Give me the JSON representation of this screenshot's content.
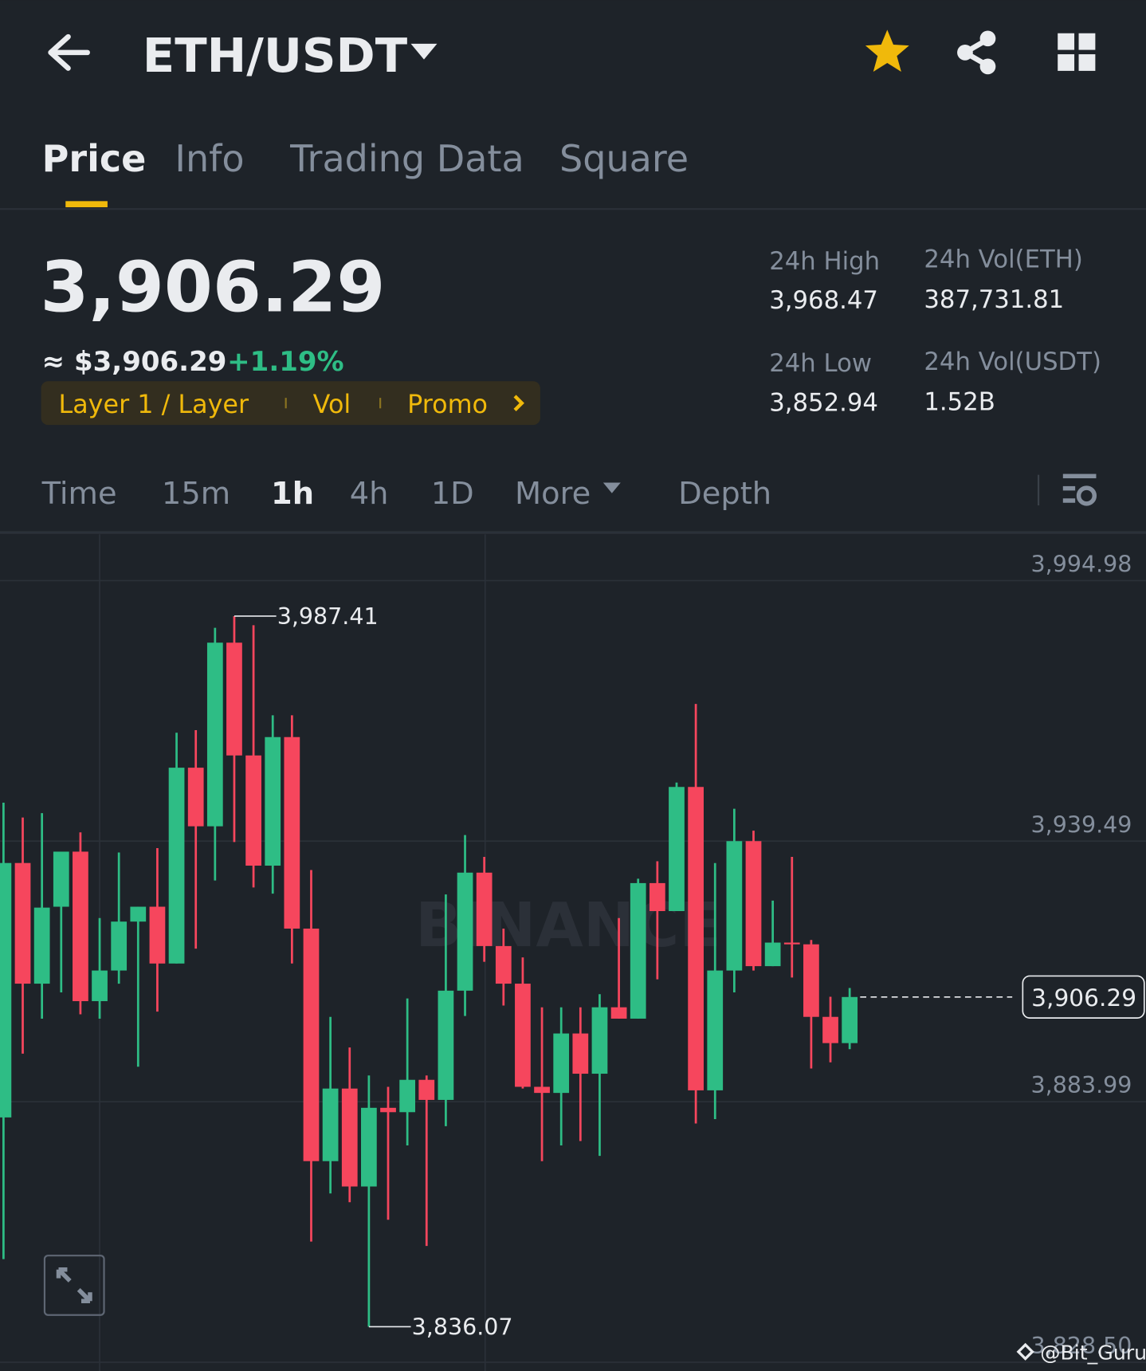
{
  "header": {
    "pair": "ETH/USDT"
  },
  "tabs": [
    "Price",
    "Info",
    "Trading Data",
    "Square"
  ],
  "price": {
    "last": "3,906.29",
    "usd": "≈ $3,906.29",
    "change": "+1.19%"
  },
  "tags": [
    "Layer 1 / Layer",
    "Vol",
    "Promo"
  ],
  "stats": [
    {
      "label": "24h High",
      "value": "3,968.47"
    },
    {
      "label": "24h Vol(ETH)",
      "value": "387,731.81"
    },
    {
      "label": "24h Low",
      "value": "3,852.94"
    },
    {
      "label": "24h Vol(USDT)",
      "value": "1.52B"
    }
  ],
  "intervals": [
    "Time",
    "15m",
    "1h",
    "4h",
    "1D",
    "More",
    "Depth"
  ],
  "chart_data": {
    "type": "candlestick",
    "watermark": "BINANCE",
    "up_color": "#2ebd85",
    "down_color": "#f6465d",
    "ylim": [
      3826.64,
      4005.04
    ],
    "yticks": [
      {
        "value": 3994.98,
        "label": "3,994.98"
      },
      {
        "value": 3939.49,
        "label": "3,939.49"
      },
      {
        "value": 3883.99,
        "label": "3,883.99"
      },
      {
        "value": 3828.5,
        "label": "3,828.50"
      }
    ],
    "grid": true,
    "open": [
      3880.64,
      3934.83,
      3909.13,
      3925.52,
      3937.25,
      3905.41,
      3911.93,
      3922.35,
      3925.52,
      3913.42,
      3955.13,
      3942.65,
      3981.76,
      3957.74,
      3934.27,
      3961.65,
      3920.86,
      3871.33,
      3886.79,
      3865.93,
      3882.69,
      3881.76,
      3888.65,
      3884.37,
      3907.64,
      3932.78,
      3917.14,
      3909.13,
      3887.16,
      3885.86,
      3898.52,
      3889.95,
      3904.1,
      3901.68,
      3930.55,
      3924.59,
      3951.03,
      3886.41,
      3911.93,
      3939.49,
      3912.86,
      3917.88,
      3917.51,
      3902.06,
      3896.47
    ],
    "high": [
      3947.68,
      3944.51,
      3945.45,
      3937.25,
      3941.35,
      3923.1,
      3937.07,
      3925.52,
      3938.0,
      3962.58,
      3963.14,
      3984.92,
      3987.41,
      3985.48,
      3966.3,
      3966.3,
      3933.34,
      3902.06,
      3895.54,
      3889.58,
      3887.16,
      3905.97,
      3889.58,
      3928.13,
      3940.79,
      3936.13,
      3920.86,
      3914.72,
      3904.1,
      3904.1,
      3904.1,
      3906.9,
      3923.1,
      3931.48,
      3935.2,
      3951.96,
      3968.72,
      3934.83,
      3946.38,
      3941.72,
      3926.82,
      3936.13,
      3918.44,
      3906.34,
      3908.2
    ],
    "low": [
      3850.47,
      3894.23,
      3901.68,
      3907.27,
      3902.61,
      3901.68,
      3909.13,
      3891.44,
      3903.17,
      3913.42,
      3916.58,
      3931.11,
      3939.3,
      3929.62,
      3928.31,
      3913.42,
      3854.2,
      3864.44,
      3862.58,
      3836.07,
      3858.85,
      3874.68,
      3853.27,
      3878.78,
      3902.24,
      3913.79,
      3904.48,
      3886.79,
      3871.33,
      3874.68,
      3875.61,
      3872.45,
      3901.68,
      3901.68,
      3910.06,
      3924.59,
      3879.34,
      3880.27,
      3907.27,
      3911.93,
      3912.86,
      3910.44,
      3891.07,
      3892.37,
      3895.17
    ],
    "close": [
      3934.83,
      3909.13,
      3925.33,
      3937.25,
      3905.41,
      3911.93,
      3922.35,
      3925.52,
      3913.42,
      3955.13,
      3942.65,
      3981.76,
      3957.74,
      3934.27,
      3961.65,
      3920.86,
      3871.33,
      3886.79,
      3865.93,
      3882.69,
      3881.76,
      3888.65,
      3884.37,
      3907.64,
      3932.78,
      3917.14,
      3909.13,
      3887.16,
      3885.86,
      3898.52,
      3889.95,
      3904.1,
      3901.68,
      3930.55,
      3924.59,
      3951.03,
      3886.41,
      3911.93,
      3939.49,
      3912.86,
      3917.88,
      3917.51,
      3902.06,
      3896.47,
      3906.29
    ],
    "annotations": {
      "high": {
        "value": 3987.41,
        "label": "3,987.41"
      },
      "low": {
        "value": 3836.07,
        "label": "3,836.07"
      },
      "last": {
        "value": 3906.29,
        "label": "3,906.29"
      }
    }
  },
  "credit": "@Bit_Guru"
}
